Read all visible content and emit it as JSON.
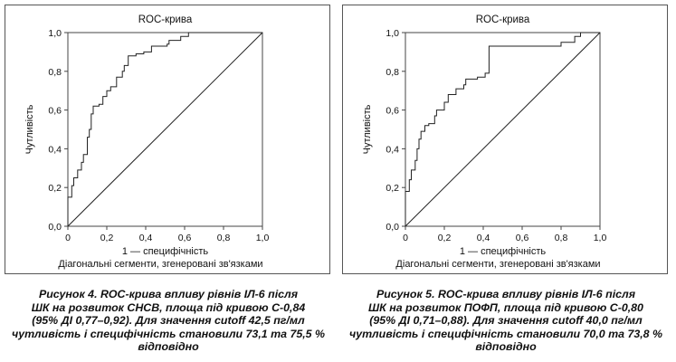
{
  "chart_data": [
    {
      "type": "line",
      "title": "ROC-крива",
      "xlabel": "1 — специфічність",
      "ylabel": "Чутливість",
      "note": "Діагональні сегменти, згенеровані зв'язками",
      "xlim": [
        0,
        1
      ],
      "ylim": [
        0,
        1
      ],
      "xticks": [
        "0",
        "0,2",
        "0,4",
        "0,6",
        "0,8",
        "1,0"
      ],
      "yticks": [
        "0,0",
        "0,2",
        "0,4",
        "0,6",
        "0,8",
        "1,0"
      ],
      "grid": false,
      "series": [
        {
          "x": [
            0,
            0,
            0.02,
            0.02,
            0.03,
            0.03,
            0.05,
            0.05,
            0.07,
            0.07,
            0.08,
            0.08,
            0.1,
            0.1,
            0.11,
            0.11,
            0.12,
            0.12,
            0.13,
            0.13,
            0.16,
            0.16,
            0.18,
            0.18,
            0.2,
            0.2,
            0.22,
            0.22,
            0.25,
            0.25,
            0.28,
            0.28,
            0.29,
            0.29,
            0.31,
            0.31,
            0.35,
            0.35,
            0.39,
            0.39,
            0.43,
            0.43,
            0.51,
            0.51,
            0.52,
            0.52,
            0.58,
            0.58,
            0.62,
            0.62,
            1.0
          ],
          "y": [
            0,
            0.15,
            0.15,
            0.21,
            0.21,
            0.25,
            0.25,
            0.29,
            0.29,
            0.33,
            0.33,
            0.37,
            0.37,
            0.46,
            0.46,
            0.5,
            0.5,
            0.58,
            0.58,
            0.62,
            0.62,
            0.63,
            0.63,
            0.67,
            0.67,
            0.7,
            0.7,
            0.72,
            0.72,
            0.77,
            0.77,
            0.8,
            0.8,
            0.83,
            0.83,
            0.88,
            0.88,
            0.89,
            0.89,
            0.9,
            0.9,
            0.93,
            0.93,
            0.94,
            0.94,
            0.96,
            0.96,
            0.98,
            0.98,
            1.0,
            1.0
          ]
        },
        {
          "x": [
            0,
            1
          ],
          "y": [
            0,
            1
          ]
        }
      ]
    },
    {
      "type": "line",
      "title": "ROC-крива",
      "xlabel": "1 — специфічність",
      "ylabel": "Чутливість",
      "note": "Діагональні сегменти, згенеровані зв'язками",
      "xlim": [
        0,
        1
      ],
      "ylim": [
        0,
        1
      ],
      "xticks": [
        "0",
        "0,2",
        "0,4",
        "0,6",
        "0,8",
        "1,0"
      ],
      "yticks": [
        "0,0",
        "0,2",
        "0,4",
        "0,6",
        "0,8",
        "1,0"
      ],
      "grid": false,
      "series": [
        {
          "x": [
            0,
            0,
            0.02,
            0.02,
            0.03,
            0.03,
            0.05,
            0.05,
            0.06,
            0.06,
            0.07,
            0.07,
            0.08,
            0.08,
            0.1,
            0.1,
            0.12,
            0.12,
            0.15,
            0.15,
            0.16,
            0.16,
            0.2,
            0.2,
            0.22,
            0.22,
            0.26,
            0.26,
            0.3,
            0.3,
            0.31,
            0.31,
            0.37,
            0.37,
            0.41,
            0.41,
            0.43,
            0.43,
            0.8,
            0.8,
            0.87,
            0.87,
            0.9,
            0.9,
            1.0
          ],
          "y": [
            0,
            0.18,
            0.18,
            0.24,
            0.24,
            0.29,
            0.29,
            0.34,
            0.34,
            0.4,
            0.4,
            0.45,
            0.45,
            0.49,
            0.49,
            0.52,
            0.52,
            0.53,
            0.53,
            0.57,
            0.57,
            0.6,
            0.6,
            0.64,
            0.64,
            0.68,
            0.68,
            0.71,
            0.71,
            0.73,
            0.73,
            0.76,
            0.76,
            0.77,
            0.77,
            0.79,
            0.79,
            0.93,
            0.93,
            0.95,
            0.95,
            0.98,
            0.98,
            1.0,
            1.0
          ]
        },
        {
          "x": [
            0,
            1
          ],
          "y": [
            0,
            1
          ]
        }
      ]
    }
  ],
  "captions": {
    "left": [
      "Рисунок 4. ROC-крива впливу рівнів ІЛ-6 після",
      "ШК на розвиток СНСВ, площа під кривою С-0,84",
      "(95% ДІ 0,77–0,92). Для значення cutoff 42,5 пг/мл",
      "чутливість і специфічність становили 73,1 та 75,5 %",
      "відповідно"
    ],
    "right": [
      "Рисунок 5. ROC-крива впливу рівнів ІЛ-6 після",
      "ШК на розвиток ПОФП, площа під кривою С-0,80",
      "(95% ДІ 0,71–0,88). Для значення cutoff 40,0 пг/мл",
      "чутливість і специфічність становили 70,0 та 73,8 %",
      "відповідно"
    ]
  }
}
